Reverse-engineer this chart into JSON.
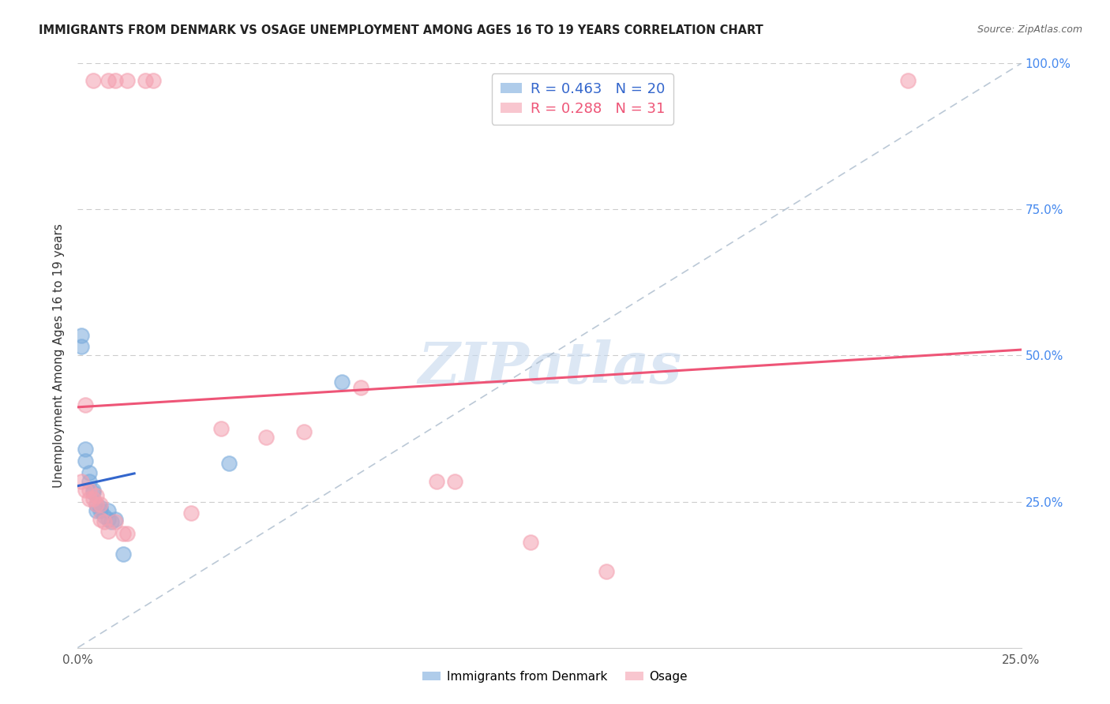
{
  "title": "IMMIGRANTS FROM DENMARK VS OSAGE UNEMPLOYMENT AMONG AGES 16 TO 19 YEARS CORRELATION CHART",
  "source": "Source: ZipAtlas.com",
  "ylabel": "Unemployment Among Ages 16 to 19 years",
  "r_denmark": 0.463,
  "n_denmark": 20,
  "r_osage": 0.288,
  "n_osage": 31,
  "xlim": [
    0.0,
    0.25
  ],
  "ylim": [
    0.0,
    1.0
  ],
  "xtick_positions": [
    0.0,
    0.05,
    0.1,
    0.15,
    0.2,
    0.25
  ],
  "xtick_labels": [
    "0.0%",
    "",
    "",
    "",
    "",
    "25.0%"
  ],
  "ytick_labels_right": [
    "100.0%",
    "75.0%",
    "50.0%",
    "25.0%"
  ],
  "ytick_positions_right": [
    1.0,
    0.75,
    0.5,
    0.25
  ],
  "watermark": "ZIPatlas",
  "denmark_color": "#7aabdc",
  "osage_color": "#f4a0b0",
  "denmark_line_color": "#3366cc",
  "osage_line_color": "#ee5577",
  "ref_line_color": "#aabbcc",
  "denmark_scatter": [
    [
      0.001,
      0.515
    ],
    [
      0.001,
      0.535
    ],
    [
      0.002,
      0.32
    ],
    [
      0.002,
      0.34
    ],
    [
      0.003,
      0.285
    ],
    [
      0.003,
      0.3
    ],
    [
      0.004,
      0.265
    ],
    [
      0.004,
      0.27
    ],
    [
      0.005,
      0.235
    ],
    [
      0.005,
      0.245
    ],
    [
      0.006,
      0.235
    ],
    [
      0.006,
      0.24
    ],
    [
      0.007,
      0.225
    ],
    [
      0.008,
      0.22
    ],
    [
      0.008,
      0.235
    ],
    [
      0.009,
      0.215
    ],
    [
      0.01,
      0.22
    ],
    [
      0.012,
      0.16
    ],
    [
      0.04,
      0.315
    ],
    [
      0.07,
      0.455
    ]
  ],
  "osage_scatter": [
    [
      0.004,
      0.97
    ],
    [
      0.008,
      0.97
    ],
    [
      0.01,
      0.97
    ],
    [
      0.013,
      0.97
    ],
    [
      0.018,
      0.97
    ],
    [
      0.02,
      0.97
    ],
    [
      0.002,
      0.415
    ],
    [
      0.001,
      0.285
    ],
    [
      0.002,
      0.27
    ],
    [
      0.003,
      0.255
    ],
    [
      0.003,
      0.27
    ],
    [
      0.004,
      0.255
    ],
    [
      0.005,
      0.26
    ],
    [
      0.005,
      0.245
    ],
    [
      0.006,
      0.245
    ],
    [
      0.006,
      0.22
    ],
    [
      0.007,
      0.215
    ],
    [
      0.008,
      0.2
    ],
    [
      0.01,
      0.215
    ],
    [
      0.012,
      0.195
    ],
    [
      0.013,
      0.195
    ],
    [
      0.03,
      0.23
    ],
    [
      0.038,
      0.375
    ],
    [
      0.05,
      0.36
    ],
    [
      0.06,
      0.37
    ],
    [
      0.075,
      0.445
    ],
    [
      0.095,
      0.285
    ],
    [
      0.1,
      0.285
    ],
    [
      0.12,
      0.18
    ],
    [
      0.14,
      0.13
    ],
    [
      0.22,
      0.97
    ]
  ]
}
